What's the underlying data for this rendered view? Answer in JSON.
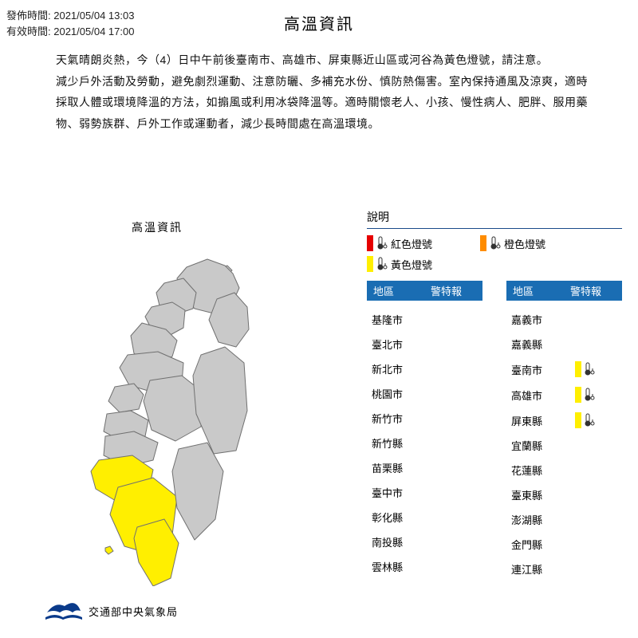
{
  "meta": {
    "issued_label": "發佈時間: ",
    "issued_value": "2021/05/04 13:03",
    "valid_label": "有效時間: ",
    "valid_value": "2021/05/04 17:00"
  },
  "title": "高溫資訊",
  "body": {
    "p1": "天氣晴朗炎熱，今（4）日中午前後臺南市、高雄市、屏東縣近山區或河谷為黃色燈號，請注意。",
    "p2": "減少戶外活動及勞動，避免劇烈運動、注意防曬、多補充水份、慎防熱傷害。室內保持通風及涼爽，適時採取人體或環境降溫的方法，如搧風或利用冰袋降溫等。適時關懷老人、小孩、慢性病人、肥胖、服用藥物、弱勢族群、戶外工作或運動者，減少長時間處在高溫環境。"
  },
  "map": {
    "title": "高溫資訊",
    "agency": "交通部中央氣象局",
    "fill_default": "#c9c9c9",
    "fill_alert": "#ffef00",
    "stroke": "#707070",
    "logo_color": "#0a3a8a"
  },
  "legend": {
    "title": "說明",
    "items": [
      {
        "color": "#e60000",
        "label": "紅色燈號"
      },
      {
        "color": "#ff8c00",
        "label": "橙色燈號"
      },
      {
        "color": "#ffef00",
        "label": "黃色燈號"
      }
    ]
  },
  "table": {
    "header_area": "地區",
    "header_alert": "警特報",
    "header_bg": "#1a6db3",
    "left": [
      {
        "name": "基隆市",
        "alert": null
      },
      {
        "name": "臺北市",
        "alert": null
      },
      {
        "name": "新北市",
        "alert": null
      },
      {
        "name": "桃園市",
        "alert": null
      },
      {
        "name": "新竹市",
        "alert": null
      },
      {
        "name": "新竹縣",
        "alert": null
      },
      {
        "name": "苗栗縣",
        "alert": null
      },
      {
        "name": "臺中市",
        "alert": null
      },
      {
        "name": "彰化縣",
        "alert": null
      },
      {
        "name": "南投縣",
        "alert": null
      },
      {
        "name": "雲林縣",
        "alert": null
      }
    ],
    "right": [
      {
        "name": "嘉義市",
        "alert": null
      },
      {
        "name": "嘉義縣",
        "alert": null
      },
      {
        "name": "臺南市",
        "alert": "#ffef00"
      },
      {
        "name": "高雄市",
        "alert": "#ffef00"
      },
      {
        "name": "屏東縣",
        "alert": "#ffef00"
      },
      {
        "name": "宜蘭縣",
        "alert": null
      },
      {
        "name": "花蓮縣",
        "alert": null
      },
      {
        "name": "臺東縣",
        "alert": null
      },
      {
        "name": "澎湖縣",
        "alert": null
      },
      {
        "name": "金門縣",
        "alert": null
      },
      {
        "name": "連江縣",
        "alert": null
      }
    ]
  }
}
